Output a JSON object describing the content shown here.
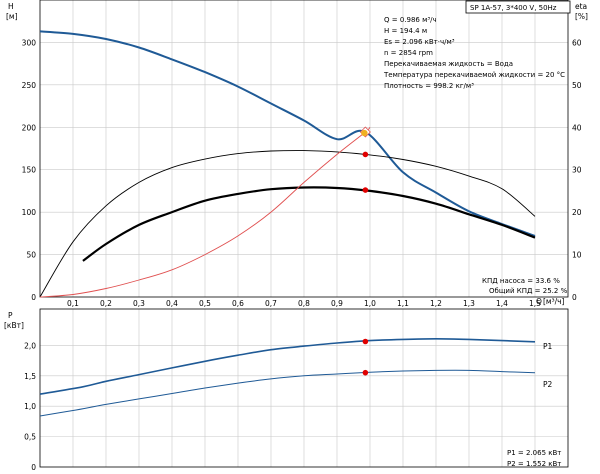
{
  "header": {
    "model": "SP 1A-57, 3*400 V, 50Hz"
  },
  "info": {
    "lines": [
      "Q = 0.986 м³/ч",
      "H = 194.4 м",
      "Es = 2.096 кВт·ч/м³",
      "n = 2854 rpm",
      "Перекачиваемая жидкость = Вода",
      "Температура перекачиваемой жидкости = 20 °C",
      "Плотность = 998.2 кг/м³"
    ],
    "efficiency": [
      "КПД насоса = 33.6 %",
      "Общий КПД = 25.2 %"
    ],
    "power": [
      "P1 = 2.065 кВт",
      "P2 = 1.552 кВт"
    ]
  },
  "colors": {
    "head": "#1f5a96",
    "efficiency": "#e05050",
    "black": "#000000",
    "grid": "#c9c9c9",
    "operating": "#f0b020",
    "marker": "#e00000"
  },
  "chart_data": [
    {
      "type": "line",
      "panel": "top",
      "ylabel": "H",
      "yunit": "[м]",
      "y2label": "eta",
      "y2unit": "[%]",
      "xlabel": "Q",
      "xunit": "[м³/ч]",
      "xlim": [
        0,
        1.6
      ],
      "ylim": [
        0,
        350
      ],
      "y2lim": [
        0,
        70
      ],
      "xticks": [
        0.1,
        0.2,
        0.3,
        0.4,
        0.5,
        0.6,
        0.7,
        0.8,
        0.9,
        1.0,
        1.1,
        1.2,
        1.3,
        1.4,
        1.5
      ],
      "xtick_labels": [
        "0,1",
        "0,2",
        "0,3",
        "0,4",
        "0,5",
        "0,6",
        "0,7",
        "0,8",
        "0,9",
        "1,0",
        "1,1",
        "1,2",
        "1,3",
        "1,4",
        "1,5"
      ],
      "yticks": [
        0,
        50,
        100,
        150,
        200,
        250,
        300
      ],
      "y2ticks": [
        0,
        10,
        20,
        30,
        40,
        50,
        60
      ],
      "grid": true,
      "series": [
        {
          "id": "head",
          "axis": "left",
          "x": [
            0,
            0.1,
            0.2,
            0.3,
            0.4,
            0.5,
            0.6,
            0.7,
            0.8,
            0.9,
            0.986,
            1.1,
            1.2,
            1.3,
            1.4,
            1.5
          ],
          "y": [
            313,
            310,
            304,
            294,
            280,
            265,
            248,
            228,
            208,
            186,
            194.4,
            147,
            123,
            101,
            86,
            72
          ]
        },
        {
          "id": "pump-efficiency",
          "axis": "right",
          "x": [
            0,
            0.1,
            0.2,
            0.3,
            0.4,
            0.5,
            0.6,
            0.7,
            0.8,
            0.9,
            1.0,
            1.1,
            1.2,
            1.3,
            1.4,
            1.5
          ],
          "y": [
            0,
            13,
            21.5,
            27,
            30.5,
            32.5,
            33.8,
            34.4,
            34.5,
            34.2,
            33.5,
            32.4,
            30.8,
            28.5,
            25.5,
            19
          ]
        },
        {
          "id": "total-efficiency",
          "axis": "right",
          "x": [
            0.13,
            0.2,
            0.3,
            0.4,
            0.5,
            0.6,
            0.7,
            0.8,
            0.9,
            1.0,
            1.1,
            1.2,
            1.3,
            1.4,
            1.5
          ],
          "y": [
            8.5,
            12.5,
            17,
            20,
            22.7,
            24.3,
            25.4,
            25.8,
            25.7,
            25,
            23.8,
            22,
            19.5,
            17,
            14
          ]
        },
        {
          "id": "efficiency-at-speed",
          "axis": "left",
          "x": [
            0,
            0.1,
            0.2,
            0.3,
            0.4,
            0.5,
            0.6,
            0.7,
            0.8,
            0.9,
            0.986,
            1.0
          ],
          "y": [
            0,
            3,
            10,
            20,
            32,
            50,
            72,
            100,
            135,
            168,
            194.4,
            200
          ]
        }
      ],
      "markers": [
        {
          "id": "operating-point",
          "x": 0.986,
          "y": 194.4,
          "axis": "left"
        },
        {
          "id": "pump-eff-point",
          "x": 0.986,
          "y": 33.6,
          "axis": "right"
        },
        {
          "id": "total-eff-point",
          "x": 0.986,
          "y": 25.2,
          "axis": "right"
        }
      ]
    },
    {
      "type": "line",
      "panel": "bottom",
      "ylabel": "P",
      "yunit": "[кВт]",
      "xlim": [
        0,
        1.6
      ],
      "ylim": [
        0,
        2.6
      ],
      "yticks": [
        0,
        0.5,
        1.0,
        1.5,
        2.0
      ],
      "ytick_labels": [
        "0",
        "0,5",
        "1,0",
        "1,5",
        "2,0"
      ],
      "grid": true,
      "series": [
        {
          "id": "p1",
          "name": "P1",
          "x": [
            0,
            0.13,
            0.2,
            0.3,
            0.4,
            0.5,
            0.6,
            0.7,
            0.8,
            0.9,
            1.0,
            1.1,
            1.2,
            1.3,
            1.4,
            1.5
          ],
          "y": [
            1.2,
            1.32,
            1.41,
            1.52,
            1.63,
            1.74,
            1.84,
            1.93,
            1.99,
            2.04,
            2.08,
            2.1,
            2.11,
            2.1,
            2.08,
            2.06
          ]
        },
        {
          "id": "p2",
          "name": "P2",
          "x": [
            0,
            0.1,
            0.2,
            0.3,
            0.4,
            0.5,
            0.6,
            0.7,
            0.8,
            0.9,
            1.0,
            1.1,
            1.2,
            1.3,
            1.4,
            1.5
          ],
          "y": [
            0.84,
            0.93,
            1.03,
            1.12,
            1.21,
            1.3,
            1.38,
            1.45,
            1.5,
            1.53,
            1.56,
            1.58,
            1.59,
            1.59,
            1.57,
            1.55
          ]
        }
      ],
      "markers": [
        {
          "id": "p1-point",
          "x": 0.986,
          "y": 2.065
        },
        {
          "id": "p2-point",
          "x": 0.986,
          "y": 1.552
        }
      ]
    }
  ]
}
